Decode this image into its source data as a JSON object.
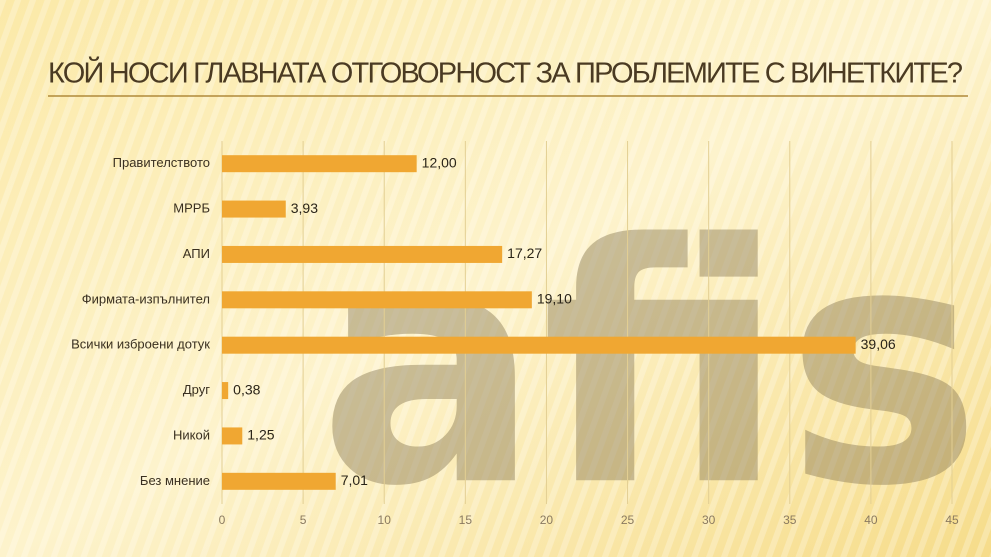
{
  "watermark": "afis",
  "chart_data": {
    "type": "bar",
    "orientation": "horizontal",
    "title": "КОЙ НОСИ ГЛАВНАТА ОТГОВОРНОСТ ЗА ПРОБЛЕМИТЕ С ВИНЕТКИТЕ?",
    "categories": [
      "Правителството",
      "МРРБ",
      "АПИ",
      "Фирмата-изпълнител",
      "Всички изброени дотук",
      "Друг",
      "Никой",
      "Без мнение"
    ],
    "values": [
      12,
      3.93,
      17.27,
      19.1,
      39.06,
      0.38,
      1.25,
      7.01
    ],
    "value_labels": [
      "12,00",
      "3,93",
      "17,27",
      "19,10",
      "39,06",
      "0,38",
      "1,25",
      "7,01"
    ],
    "color": "#f0a732",
    "xlim": [
      0,
      45
    ],
    "xticks": [
      0,
      5,
      10,
      15,
      20,
      25,
      30,
      35,
      40,
      45
    ],
    "grid": true
  }
}
